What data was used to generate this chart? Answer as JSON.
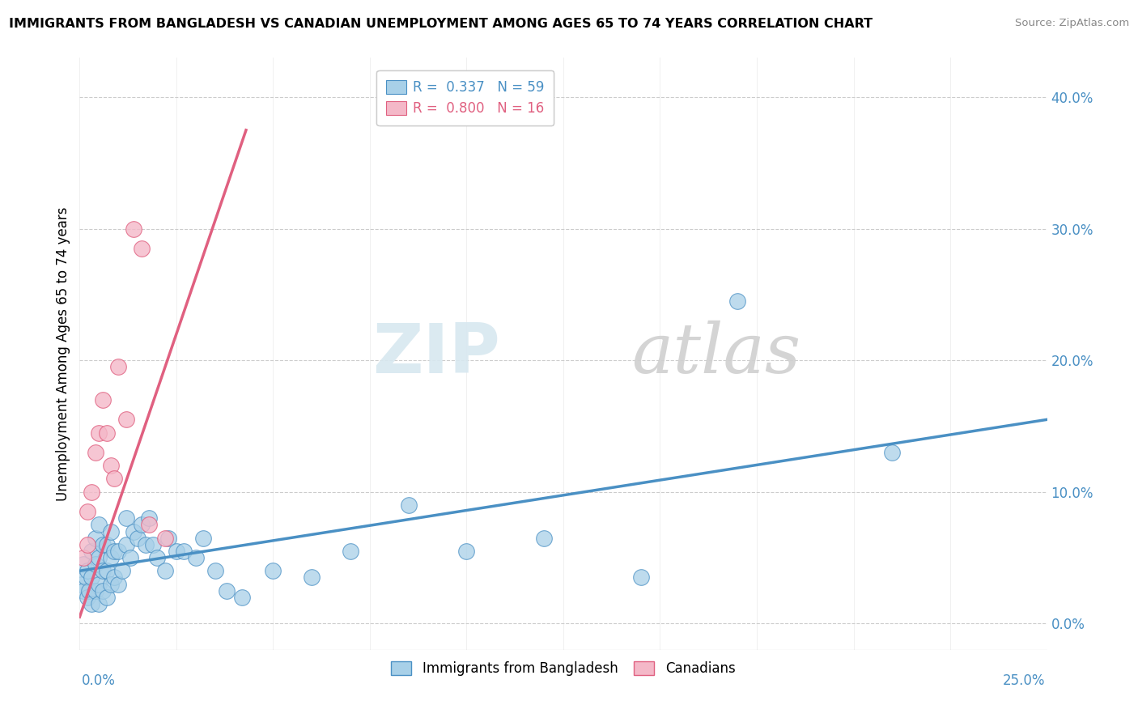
{
  "title": "IMMIGRANTS FROM BANGLADESH VS CANADIAN UNEMPLOYMENT AMONG AGES 65 TO 74 YEARS CORRELATION CHART",
  "source": "Source: ZipAtlas.com",
  "ylabel": "Unemployment Among Ages 65 to 74 years",
  "legend_r1": "R =  0.337",
  "legend_n1": "N = 59",
  "legend_r2": "R =  0.800",
  "legend_n2": "N = 16",
  "blue_color": "#a8d0e8",
  "pink_color": "#f4b8c8",
  "blue_line_color": "#4a90c4",
  "pink_line_color": "#e06080",
  "background_color": "#ffffff",
  "grid_color": "#cccccc",
  "watermark_zip": "ZIP",
  "watermark_atlas": "atlas",
  "xlim": [
    0.0,
    0.25
  ],
  "ylim": [
    -0.02,
    0.43
  ],
  "ytick_values": [
    0.0,
    0.1,
    0.2,
    0.3,
    0.4
  ],
  "ytick_labels": [
    "0.0%",
    "10.0%",
    "20.0%",
    "30.0%",
    "40.0%"
  ],
  "blue_scatter_x": [
    0.0005,
    0.001,
    0.001,
    0.0015,
    0.002,
    0.002,
    0.0025,
    0.003,
    0.003,
    0.003,
    0.004,
    0.004,
    0.004,
    0.005,
    0.005,
    0.005,
    0.005,
    0.006,
    0.006,
    0.006,
    0.007,
    0.007,
    0.007,
    0.008,
    0.008,
    0.008,
    0.009,
    0.009,
    0.01,
    0.01,
    0.011,
    0.012,
    0.012,
    0.013,
    0.014,
    0.015,
    0.016,
    0.017,
    0.018,
    0.019,
    0.02,
    0.022,
    0.023,
    0.025,
    0.027,
    0.03,
    0.032,
    0.035,
    0.038,
    0.042,
    0.05,
    0.06,
    0.07,
    0.085,
    0.1,
    0.12,
    0.145,
    0.17,
    0.21
  ],
  "blue_scatter_y": [
    0.03,
    0.025,
    0.045,
    0.035,
    0.02,
    0.04,
    0.025,
    0.015,
    0.035,
    0.055,
    0.025,
    0.045,
    0.065,
    0.015,
    0.03,
    0.05,
    0.075,
    0.025,
    0.04,
    0.06,
    0.02,
    0.04,
    0.06,
    0.03,
    0.05,
    0.07,
    0.035,
    0.055,
    0.03,
    0.055,
    0.04,
    0.06,
    0.08,
    0.05,
    0.07,
    0.065,
    0.075,
    0.06,
    0.08,
    0.06,
    0.05,
    0.04,
    0.065,
    0.055,
    0.055,
    0.05,
    0.065,
    0.04,
    0.025,
    0.02,
    0.04,
    0.035,
    0.055,
    0.09,
    0.055,
    0.065,
    0.035,
    0.245,
    0.13
  ],
  "pink_scatter_x": [
    0.001,
    0.002,
    0.002,
    0.003,
    0.004,
    0.005,
    0.006,
    0.007,
    0.008,
    0.009,
    0.01,
    0.012,
    0.014,
    0.016,
    0.018,
    0.022
  ],
  "pink_scatter_y": [
    0.05,
    0.06,
    0.085,
    0.1,
    0.13,
    0.145,
    0.17,
    0.145,
    0.12,
    0.11,
    0.195,
    0.155,
    0.3,
    0.285,
    0.075,
    0.065
  ],
  "blue_trend_x": [
    0.0,
    0.25
  ],
  "blue_trend_y": [
    0.04,
    0.155
  ],
  "pink_trend_x": [
    0.0,
    0.043
  ],
  "pink_trend_y": [
    0.005,
    0.375
  ]
}
